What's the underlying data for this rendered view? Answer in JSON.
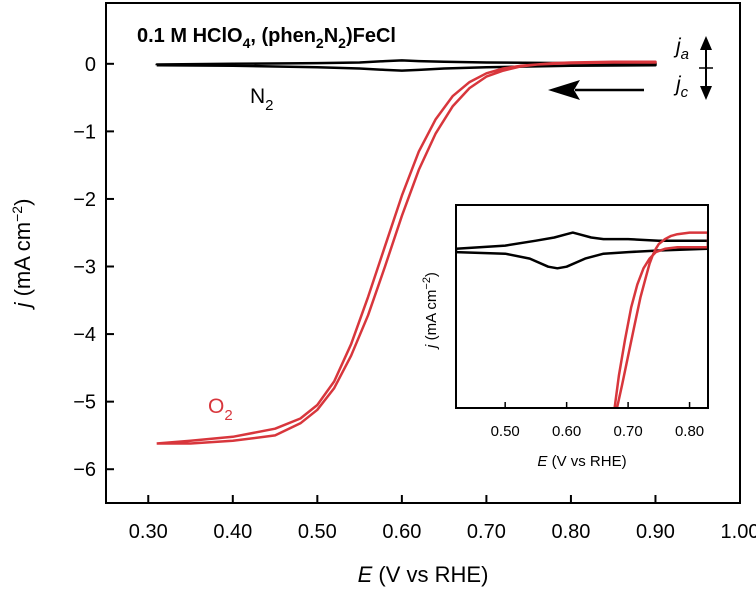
{
  "chart_data": [
    {
      "type": "line",
      "title": "0.1 M HClO",
      "title_sub": "4",
      "title_rest": ", (phen",
      "title_sub2": "2",
      "title_mid": "N",
      "title_sub3": "2",
      "title_end": ")FeCl",
      "xlabel_var": "E",
      "xlabel": " (V vs RHE)",
      "ylabel_var": "j",
      "ylabel": " (mA cm",
      "ylabel_sup": "−2",
      "ylabel_end": ")",
      "xlim": [
        0.25,
        1.0
      ],
      "ylim": [
        -6.5,
        0.9
      ],
      "xticks": [
        "0.30",
        "0.40",
        "0.50",
        "0.60",
        "0.70",
        "0.80",
        "0.90",
        "1.00"
      ],
      "xtick_values": [
        0.3,
        0.4,
        0.5,
        0.6,
        0.7,
        0.8,
        0.9,
        1.0
      ],
      "yticks": [
        "0",
        "−1",
        "−2",
        "−3",
        "−4",
        "−5",
        "−6"
      ],
      "ytick_values": [
        0,
        -1,
        -2,
        -3,
        -4,
        -5,
        -6
      ],
      "annotations": {
        "n2_label": "N",
        "n2_sub": "2",
        "o2_label": "O",
        "o2_sub": "2",
        "ja_label": "j",
        "ja_sub": "a",
        "jc_label": "j",
        "jc_sub": "c"
      },
      "colors": {
        "o2": "#d8363c",
        "n2": "#000000"
      },
      "series": [
        {
          "name": "N2",
          "color": "#000000",
          "x": [
            0.31,
            0.4,
            0.5,
            0.55,
            0.58,
            0.6,
            0.62,
            0.65,
            0.7,
            0.8,
            0.9,
            0.9,
            0.8,
            0.7,
            0.65,
            0.62,
            0.6,
            0.58,
            0.55,
            0.5,
            0.4,
            0.31,
            0.31
          ],
          "y": [
            -0.02,
            -0.03,
            -0.05,
            -0.07,
            -0.09,
            -0.1,
            -0.09,
            -0.07,
            -0.05,
            -0.03,
            -0.02,
            0.01,
            0.01,
            0.02,
            0.03,
            0.04,
            0.05,
            0.04,
            0.02,
            0.01,
            0.0,
            -0.01,
            -0.02
          ]
        },
        {
          "name": "O2",
          "color": "#d8363c",
          "x": [
            0.31,
            0.35,
            0.4,
            0.45,
            0.48,
            0.5,
            0.52,
            0.54,
            0.56,
            0.58,
            0.6,
            0.62,
            0.64,
            0.66,
            0.68,
            0.7,
            0.72,
            0.74,
            0.76,
            0.78,
            0.8,
            0.85,
            0.9,
            0.9,
            0.85,
            0.8,
            0.78,
            0.76,
            0.74,
            0.72,
            0.7,
            0.68,
            0.66,
            0.64,
            0.62,
            0.6,
            0.58,
            0.56,
            0.54,
            0.52,
            0.5,
            0.48,
            0.45,
            0.4,
            0.35,
            0.31
          ],
          "y": [
            -5.62,
            -5.58,
            -5.52,
            -5.4,
            -5.25,
            -5.05,
            -4.7,
            -4.15,
            -3.45,
            -2.7,
            -1.95,
            -1.3,
            -0.82,
            -0.48,
            -0.27,
            -0.14,
            -0.07,
            -0.03,
            -0.01,
            0.0,
            0.01,
            0.02,
            0.02,
            0.03,
            0.03,
            0.02,
            0.01,
            -0.01,
            -0.04,
            -0.1,
            -0.19,
            -0.36,
            -0.63,
            -1.03,
            -1.57,
            -2.25,
            -3.0,
            -3.72,
            -4.32,
            -4.8,
            -5.12,
            -5.32,
            -5.5,
            -5.58,
            -5.62,
            -5.62
          ]
        }
      ]
    },
    {
      "type": "line",
      "title": "",
      "xlabel_var": "E",
      "xlabel": " (V vs RHE)",
      "ylabel_var": "j",
      "ylabel": " (mA cm",
      "ylabel_sup": "−2",
      "ylabel_end": ")",
      "xlim": [
        0.42,
        0.83
      ],
      "ylim": [
        -1.0,
        0.25
      ],
      "xticks": [
        "0.50",
        "0.60",
        "0.70",
        "0.80"
      ],
      "xtick_values": [
        0.5,
        0.6,
        0.7,
        0.8
      ],
      "series": [
        {
          "name": "N2",
          "color": "#000000",
          "x": [
            0.42,
            0.5,
            0.54,
            0.57,
            0.585,
            0.6,
            0.63,
            0.66,
            0.7,
            0.75,
            0.83,
            0.83,
            0.75,
            0.7,
            0.66,
            0.64,
            0.62,
            0.61,
            0.6,
            0.58,
            0.55,
            0.5,
            0.42,
            0.42
          ],
          "y": [
            -0.04,
            -0.05,
            -0.08,
            -0.13,
            -0.14,
            -0.13,
            -0.08,
            -0.05,
            -0.04,
            -0.03,
            -0.02,
            0.03,
            0.03,
            0.04,
            0.04,
            0.05,
            0.07,
            0.08,
            0.07,
            0.05,
            0.03,
            0.0,
            -0.02,
            -0.04
          ]
        },
        {
          "name": "O2",
          "color": "#d8363c",
          "x": [
            0.678,
            0.685,
            0.695,
            0.705,
            0.715,
            0.725,
            0.735,
            0.745,
            0.76,
            0.78,
            0.8,
            0.83,
            0.83,
            0.8,
            0.78,
            0.77,
            0.76,
            0.75,
            0.745,
            0.74,
            0.735,
            0.73,
            0.72,
            0.71,
            0.7,
            0.69,
            0.682
          ],
          "y": [
            -1.0,
            -0.8,
            -0.58,
            -0.38,
            -0.24,
            -0.14,
            -0.08,
            -0.04,
            -0.02,
            -0.01,
            -0.01,
            -0.01,
            0.08,
            0.08,
            0.07,
            0.06,
            0.04,
            0.01,
            -0.02,
            -0.06,
            -0.11,
            -0.18,
            -0.32,
            -0.5,
            -0.68,
            -0.86,
            -1.0
          ]
        }
      ]
    }
  ]
}
